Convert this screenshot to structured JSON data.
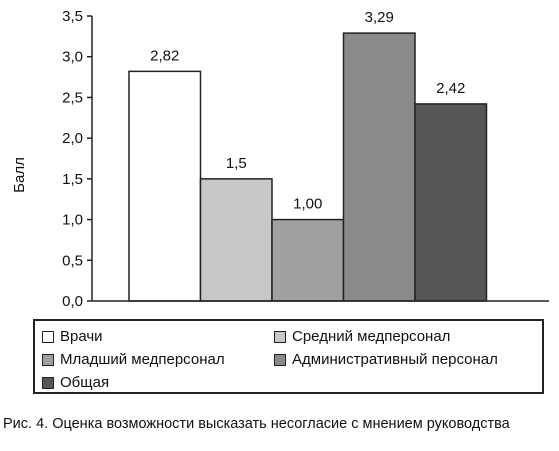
{
  "chart_data": {
    "type": "bar",
    "categories": [
      "Врачи",
      "Средний медперсонал",
      "Младший медперсонал",
      "Административный персонал",
      "Общая"
    ],
    "values": [
      2.82,
      1.5,
      1.0,
      3.29,
      2.42
    ],
    "value_labels": [
      "2,82",
      "1,5",
      "1,00",
      "3,29",
      "2,42"
    ],
    "colors": [
      "#ffffff",
      "#c8c8c8",
      "#a0a0a0",
      "#8a8a8a",
      "#555555"
    ],
    "ylabel": "Балл",
    "ylim": [
      0,
      3.5
    ],
    "yticks": [
      0,
      0.5,
      1.0,
      1.5,
      2.0,
      2.5,
      3.0,
      3.5
    ],
    "ytick_labels": [
      "0,0",
      "0,5",
      "1,0",
      "1,5",
      "2,0",
      "2,5",
      "3,0",
      "3,5"
    ],
    "grid": false,
    "legend_placement": "bottom"
  },
  "caption": "Рис. 4. Оценка возможности высказать несогласие с мнением руководства"
}
